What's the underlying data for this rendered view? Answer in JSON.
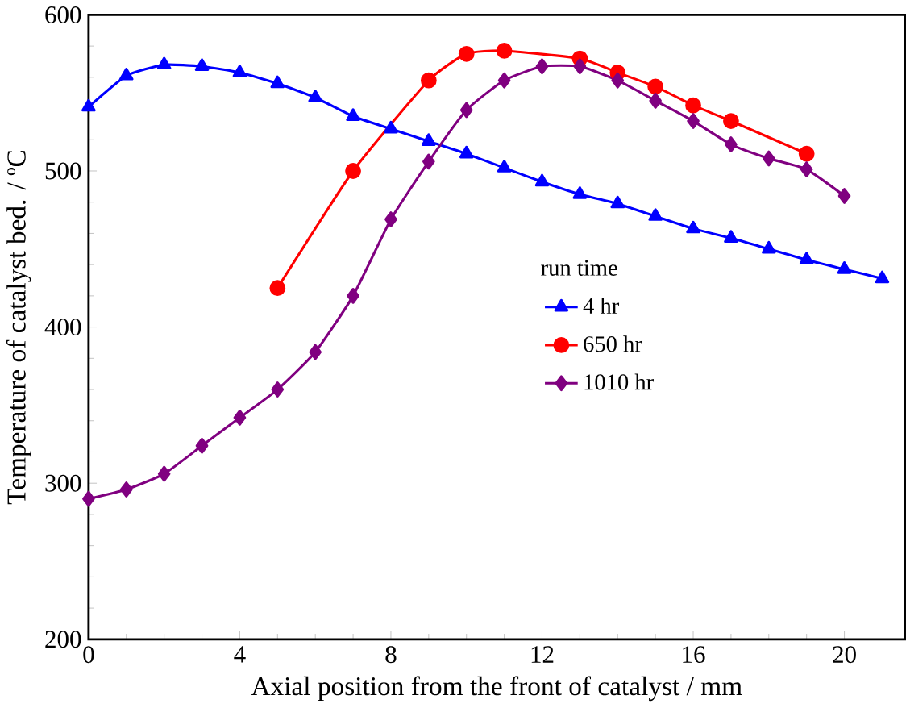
{
  "chart_data": {
    "type": "line",
    "xlabel": "Axial position from the front of catalyst / mm",
    "ylabel": "Temperature of catalyst bed. / ºC",
    "legend_title": "run time",
    "legend": "right",
    "line_style": "solid",
    "grid": false,
    "xlim": [
      0,
      21.6
    ],
    "xticks": [
      0,
      4,
      8,
      12,
      16,
      20
    ],
    "ylim": [
      200,
      600
    ],
    "yticks": [
      200,
      300,
      400,
      500,
      600
    ],
    "series": [
      {
        "name": "4 hr",
        "color": "#0000ff",
        "marker": "triangle",
        "x": [
          0,
          1,
          2,
          3,
          4,
          5,
          6,
          7,
          8,
          9,
          10,
          11,
          12,
          13,
          14,
          15,
          16,
          17,
          18,
          19,
          20,
          21
        ],
        "values": [
          541,
          561,
          568,
          567,
          563,
          556,
          547,
          535,
          527,
          519,
          511,
          502,
          493,
          485,
          479,
          471,
          463,
          457,
          450,
          443,
          437,
          431
        ]
      },
      {
        "name": "650 hr",
        "color": "#ff0000",
        "marker": "circle",
        "x": [
          5,
          7,
          9,
          10,
          11,
          13,
          14,
          15,
          16,
          17,
          19
        ],
        "values": [
          425,
          500,
          558,
          575,
          577,
          572,
          563,
          554,
          542,
          532,
          511
        ]
      },
      {
        "name": "1010 hr",
        "color": "#800080",
        "marker": "diamond",
        "x": [
          0,
          1,
          2,
          3,
          4,
          5,
          6,
          7,
          8,
          9,
          10,
          11,
          12,
          13,
          14,
          15,
          16,
          17,
          18,
          19,
          20
        ],
        "values": [
          290,
          296,
          306,
          324,
          342,
          360,
          384,
          420,
          469,
          506,
          539,
          558,
          567,
          567,
          558,
          545,
          532,
          517,
          508,
          501,
          484
        ]
      }
    ]
  }
}
